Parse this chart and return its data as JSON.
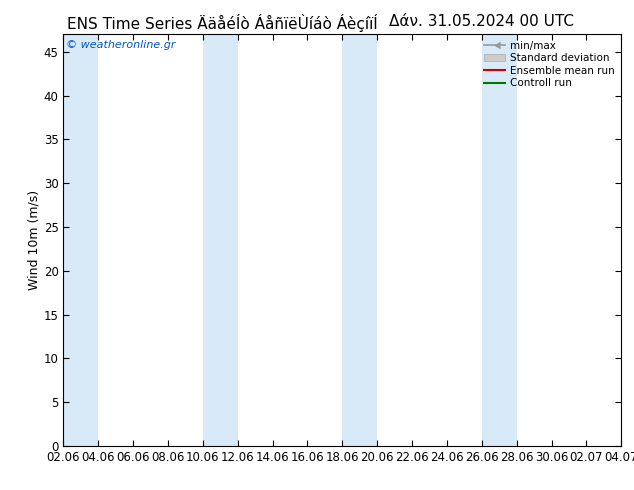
{
  "title": "ENS Time Series ÄäåéÍò ÁåñïëÙíáò ÁèçíïÍ",
  "title2": "Δάν. 31.05.2024 00 UTC",
  "ylabel": "Wind 10m (m/s)",
  "watermark": "© weatheronline.gr",
  "xtick_labels": [
    "02.06",
    "04.06",
    "06.06",
    "08.06",
    "10.06",
    "12.06",
    "14.06",
    "16.06",
    "18.06",
    "20.06",
    "22.06",
    "24.06",
    "26.06",
    "28.06",
    "30.06",
    "02.07",
    "04.07"
  ],
  "ytick_values": [
    0,
    5,
    10,
    15,
    20,
    25,
    30,
    35,
    40,
    45
  ],
  "ylim": [
    0,
    47
  ],
  "xlim": [
    0,
    16
  ],
  "bg_color": "#ffffff",
  "plot_bg_color": "#ffffff",
  "stripe_color": "#d8eaf8",
  "stripe_pairs": [
    [
      0,
      1
    ],
    [
      4,
      5
    ],
    [
      8,
      9
    ],
    [
      12,
      13
    ]
  ],
  "legend_labels": [
    "min/max",
    "Standard deviation",
    "Ensemble mean run",
    "Controll run"
  ],
  "title_fontsize": 11,
  "axis_fontsize": 9,
  "tick_fontsize": 8.5,
  "watermark_color": "#0055cc"
}
